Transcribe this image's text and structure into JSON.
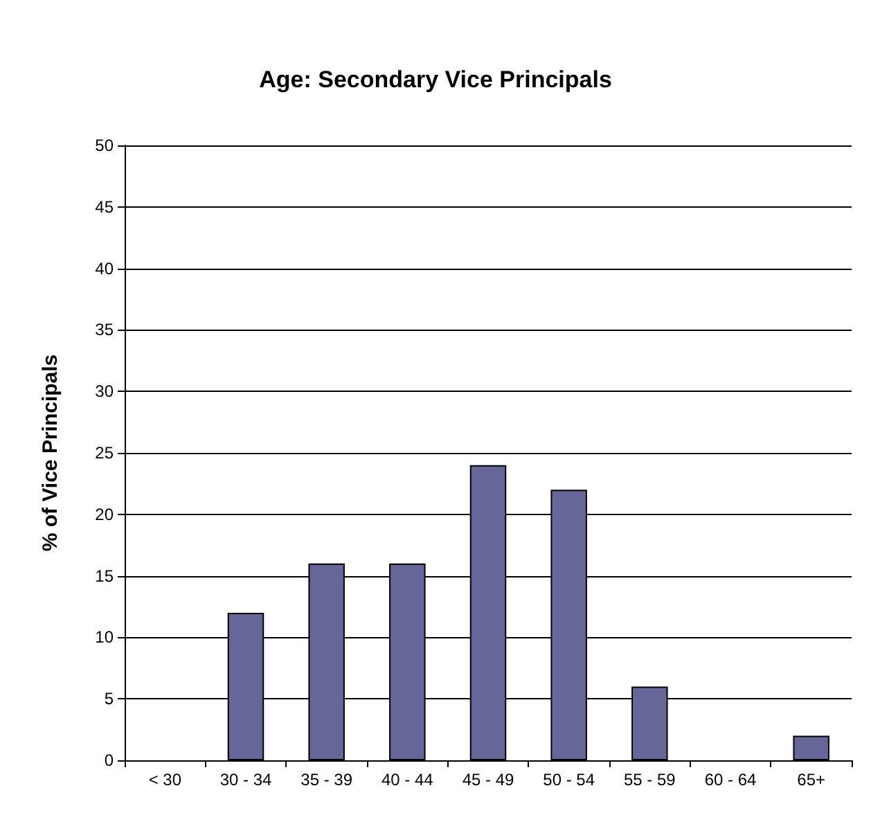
{
  "chart_data": {
    "type": "bar",
    "title": "Age: Secondary Vice Principals",
    "ylabel": "% of Vice Principals",
    "categories": [
      "< 30",
      "30 - 34",
      "35 - 39",
      "40 - 44",
      "45 - 49",
      "50 - 54",
      "55 - 59",
      "60 - 64",
      "65+"
    ],
    "values": [
      0,
      12,
      16,
      16,
      24,
      22,
      6,
      0,
      2
    ],
    "color": "#666699",
    "ylim": [
      0,
      50
    ],
    "yticks": [
      0,
      5,
      10,
      15,
      20,
      25,
      30,
      35,
      40,
      45,
      50
    ],
    "grid": "y"
  }
}
